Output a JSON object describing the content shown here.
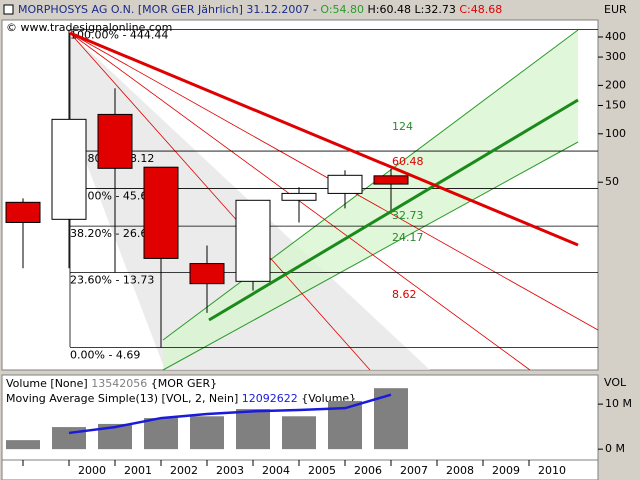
{
  "chart_data": [
    {
      "type": "candlestick",
      "title": "MORPHOSYS AG O.N. [MOR GER Jährlich] 31.12.2007 -",
      "ohlc_labels": [
        "O:54.80",
        "H:60.48",
        "L:32.73",
        "C:48.68"
      ],
      "copyright": "© www.tradesignalonline.com",
      "y_label": "EUR",
      "log_scale": true,
      "open": [
        37.5,
        29.4,
        132,
        62,
        15.6,
        12.1,
        38.6,
        42.6,
        54.8
      ],
      "high": [
        39.7,
        444.44,
        192,
        62,
        20.2,
        38.6,
        46.5,
        59.4,
        60.48
      ],
      "low": [
        14.6,
        14.6,
        13.73,
        4.69,
        7.7,
        10.6,
        28.1,
        34.4,
        32.73
      ],
      "close": [
        28.1,
        123,
        61,
        16.8,
        11.7,
        38.6,
        42.6,
        55.2,
        48.68
      ],
      "up_color": "#ffffff",
      "down_color": "#e00000",
      "ylim": [
        3.4,
        510
      ],
      "yticks": [
        50,
        100,
        150,
        200,
        300,
        400
      ],
      "fib_levels": [
        {
          "value": 444.44,
          "label": "100.00% - 444.44"
        },
        {
          "value": 78.12,
          "label": "61.80% - 78.12"
        },
        {
          "value": 45.66,
          "label": "50.00% - 45.66"
        },
        {
          "value": 26.68,
          "label": "38.20% - 26.68"
        },
        {
          "value": 13.73,
          "label": "23.60% - 13.73"
        },
        {
          "value": 4.69,
          "label": "0.00% - 4.69"
        }
      ],
      "price_labels": [
        124,
        60.48,
        32.73,
        24.17,
        8.62
      ],
      "price_label_colors": [
        "#2a8a2a",
        "#e00000",
        "#2a8a2a",
        "#2a8a2a",
        "#e00000"
      ]
    },
    {
      "type": "bar",
      "y_label": "VOL",
      "categories": [
        null,
        "2000",
        "2001",
        "2002",
        "2003",
        "2004",
        "2005",
        "2006",
        "2007",
        "2008",
        "2009",
        "2010"
      ],
      "series": [
        {
          "name": "Volume [None]",
          "suffix": "{MOR GER}",
          "color": "#808080",
          "values": [
            2000000,
            4900000,
            5600000,
            6900000,
            7300000,
            8900000,
            7300000,
            10700000,
            13542056,
            null,
            null,
            null
          ]
        },
        {
          "name": "Moving Average Simple(13) [VOL, 2, Nein]",
          "suffix": "{Volume}",
          "color": "#1a1adc",
          "values": [
            null,
            3600000,
            4900000,
            6900000,
            7800000,
            8400000,
            8700000,
            9100000,
            12092622,
            null,
            null,
            null
          ]
        }
      ],
      "ylim": [
        -1300000,
        15800000
      ],
      "yticks": [
        {
          "value": 10000000,
          "label": "10 M"
        },
        {
          "value": 0,
          "label": "0 M"
        }
      ]
    }
  ]
}
